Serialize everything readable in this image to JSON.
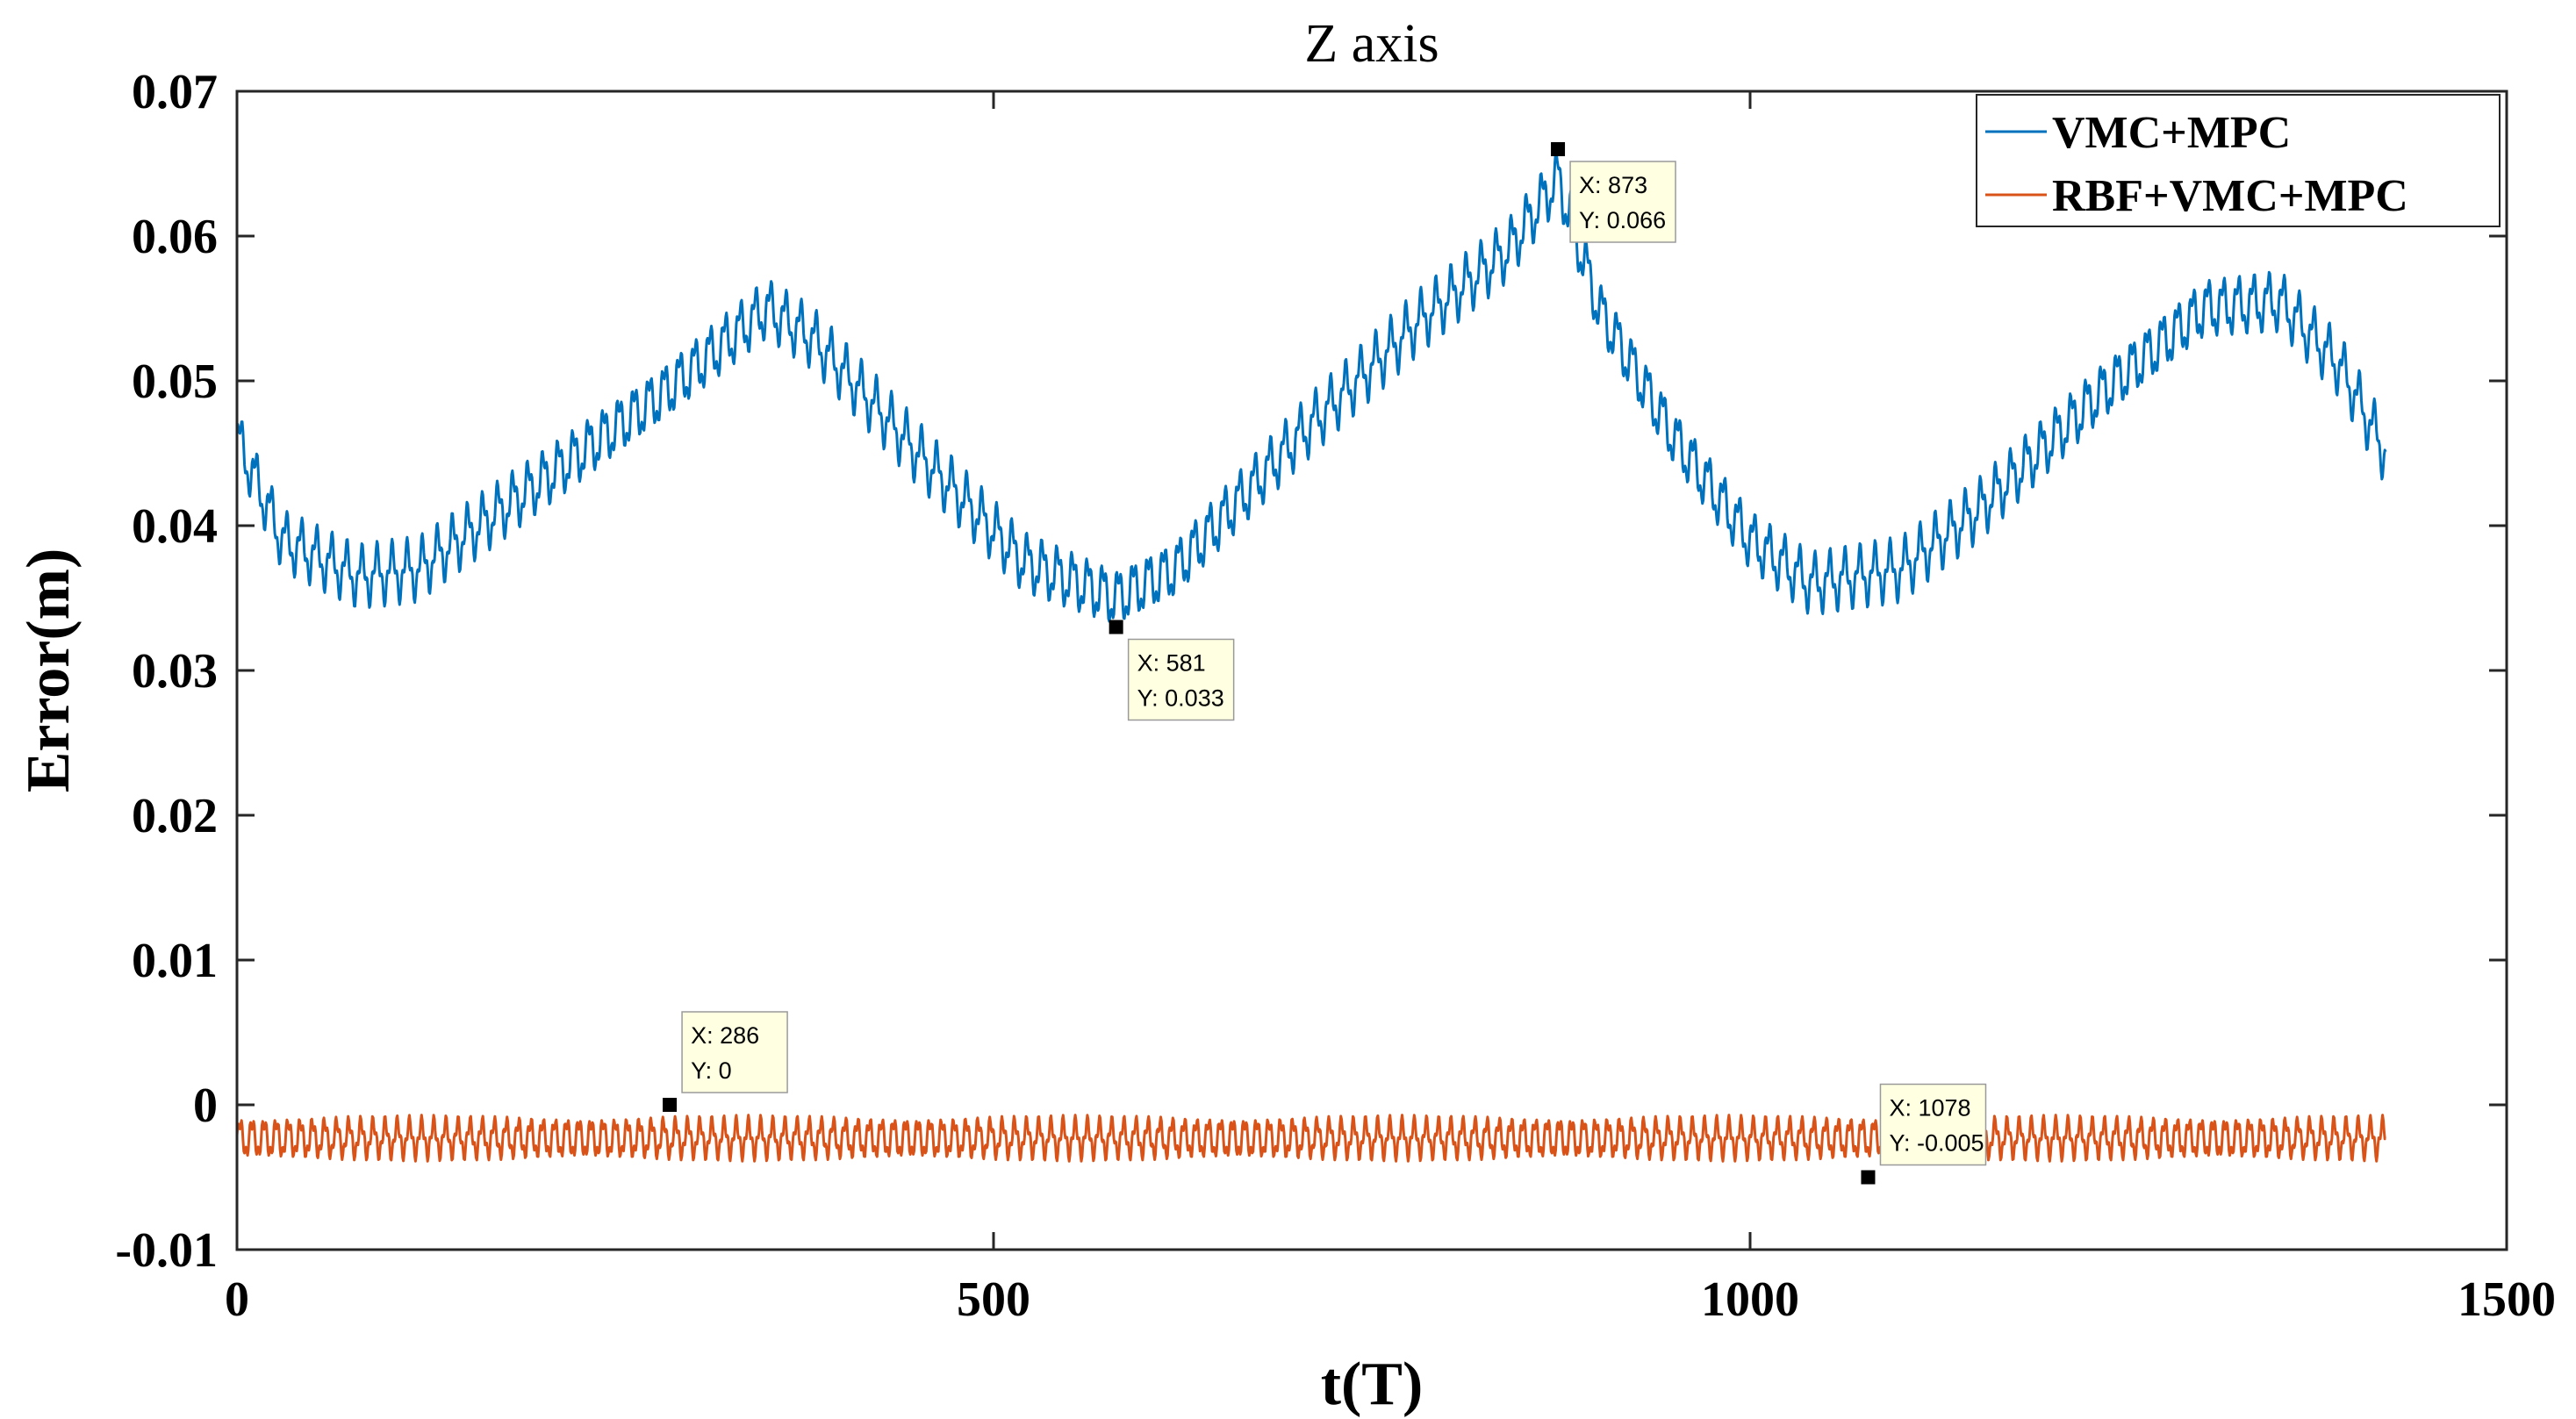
{
  "chart_data": {
    "type": "line",
    "title": "Z axis",
    "xlabel": "t(T)",
    "ylabel": "Error(m)",
    "xlim": [
      0,
      1500
    ],
    "ylim": [
      -0.01,
      0.07
    ],
    "xticks": [
      0,
      500,
      1000,
      1500
    ],
    "xtick_labels": [
      "0",
      "500",
      "1000",
      "1500"
    ],
    "yticks": [
      -0.01,
      0,
      0.01,
      0.02,
      0.03,
      0.04,
      0.05,
      0.06,
      0.07
    ],
    "ytick_labels": [
      "-0.01",
      "0",
      "0.01",
      "0.02",
      "0.03",
      "0.04",
      "0.05",
      "0.06",
      "0.07"
    ],
    "legend_position": "top-right",
    "series": [
      {
        "name": "VMC+MPC",
        "color": "#0072BD",
        "x_range": [
          0,
          1420
        ],
        "oscillation_period": 10,
        "keypoints": [
          {
            "x": 0,
            "y": 0.046
          },
          {
            "x": 30,
            "y": 0.039
          },
          {
            "x": 80,
            "y": 0.0365
          },
          {
            "x": 120,
            "y": 0.037
          },
          {
            "x": 200,
            "y": 0.043
          },
          {
            "x": 280,
            "y": 0.049
          },
          {
            "x": 350,
            "y": 0.055
          },
          {
            "x": 380,
            "y": 0.053
          },
          {
            "x": 450,
            "y": 0.045
          },
          {
            "x": 520,
            "y": 0.0375
          },
          {
            "x": 581,
            "y": 0.035
          },
          {
            "x": 620,
            "y": 0.037
          },
          {
            "x": 700,
            "y": 0.046
          },
          {
            "x": 780,
            "y": 0.054
          },
          {
            "x": 840,
            "y": 0.059
          },
          {
            "x": 873,
            "y": 0.064
          },
          {
            "x": 900,
            "y": 0.055
          },
          {
            "x": 950,
            "y": 0.046
          },
          {
            "x": 1000,
            "y": 0.039
          },
          {
            "x": 1040,
            "y": 0.036
          },
          {
            "x": 1100,
            "y": 0.037
          },
          {
            "x": 1150,
            "y": 0.041
          },
          {
            "x": 1230,
            "y": 0.049
          },
          {
            "x": 1300,
            "y": 0.055
          },
          {
            "x": 1350,
            "y": 0.0555
          },
          {
            "x": 1390,
            "y": 0.051
          },
          {
            "x": 1420,
            "y": 0.045
          }
        ]
      },
      {
        "name": "RBF+VMC+MPC",
        "color": "#D95319",
        "x_range": [
          0,
          1420
        ],
        "oscillation_period": 8,
        "keypoints": [
          {
            "x": 0,
            "y": -0.0023
          },
          {
            "x": 700,
            "y": -0.0023
          },
          {
            "x": 1420,
            "y": -0.0023
          }
        ]
      }
    ],
    "annotations": [
      {
        "series": "VMC+MPC",
        "x": 873,
        "y": 0.066,
        "text_x": "X: 873",
        "text_y": "Y: 0.066",
        "placement": "below-right"
      },
      {
        "series": "VMC+MPC",
        "x": 581,
        "y": 0.033,
        "text_x": "X: 581",
        "text_y": "Y: 0.033",
        "placement": "below-right"
      },
      {
        "series": "RBF+VMC+MPC",
        "x": 286,
        "y": 0,
        "text_x": "X: 286",
        "text_y": "Y: 0",
        "placement": "above-right"
      },
      {
        "series": "RBF+VMC+MPC",
        "x": 1078,
        "y": -0.005,
        "text_x": "X: 1078",
        "text_y": "Y: -0.005",
        "placement": "above-right"
      }
    ]
  }
}
